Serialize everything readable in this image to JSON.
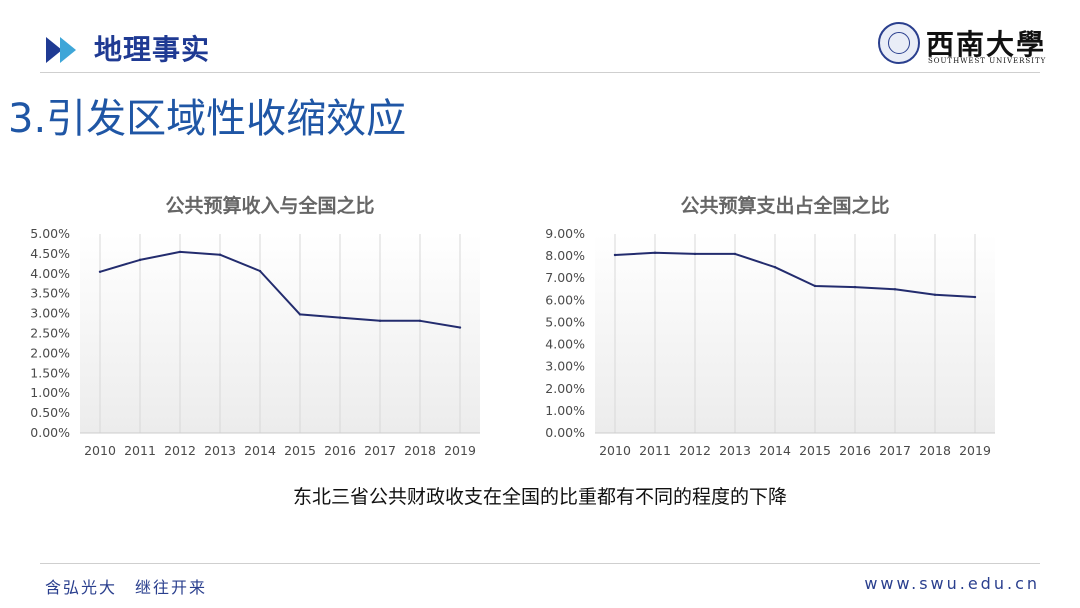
{
  "header": {
    "title": "地理事实",
    "logo_name": "西南大學",
    "logo_en": "SOUTHWEST UNIVERSITY"
  },
  "slide_heading": "3.引发区域性收缩效应",
  "caption": "东北三省公共财政收支在全国的比重都有不同的程度的下降",
  "footer": {
    "motto": "含弘光大　继往开来",
    "url": "www.swu.edu.cn"
  },
  "colors": {
    "accent": "#1f3a93",
    "heading": "#1f56a5",
    "line": "#232c6e",
    "arrow_light": "#3ea6d8"
  },
  "chart_data": [
    {
      "type": "line",
      "title": "公共预算收入与全国之比",
      "categories": [
        "2010",
        "2011",
        "2012",
        "2013",
        "2014",
        "2015",
        "2016",
        "2017",
        "2018",
        "2019"
      ],
      "values": [
        4.05,
        4.35,
        4.55,
        4.48,
        4.07,
        2.98,
        2.9,
        2.82,
        2.82,
        2.65
      ],
      "ylim": [
        0,
        5
      ],
      "ytick_step": 0.5,
      "ytick_labels": [
        "0.00%",
        "0.50%",
        "1.00%",
        "1.50%",
        "2.00%",
        "2.50%",
        "3.00%",
        "3.50%",
        "4.00%",
        "4.50%",
        "5.00%"
      ],
      "grid": "vertical",
      "unit": "%"
    },
    {
      "type": "line",
      "title": "公共预算支出占全国之比",
      "categories": [
        "2010",
        "2011",
        "2012",
        "2013",
        "2014",
        "2015",
        "2016",
        "2017",
        "2018",
        "2019"
      ],
      "values": [
        8.05,
        8.15,
        8.1,
        8.1,
        7.5,
        6.65,
        6.6,
        6.5,
        6.25,
        6.15
      ],
      "ylim": [
        0,
        9
      ],
      "ytick_step": 1,
      "ytick_labels": [
        "0.00%",
        "1.00%",
        "2.00%",
        "3.00%",
        "4.00%",
        "5.00%",
        "6.00%",
        "7.00%",
        "8.00%",
        "9.00%"
      ],
      "grid": "vertical",
      "unit": "%"
    }
  ]
}
